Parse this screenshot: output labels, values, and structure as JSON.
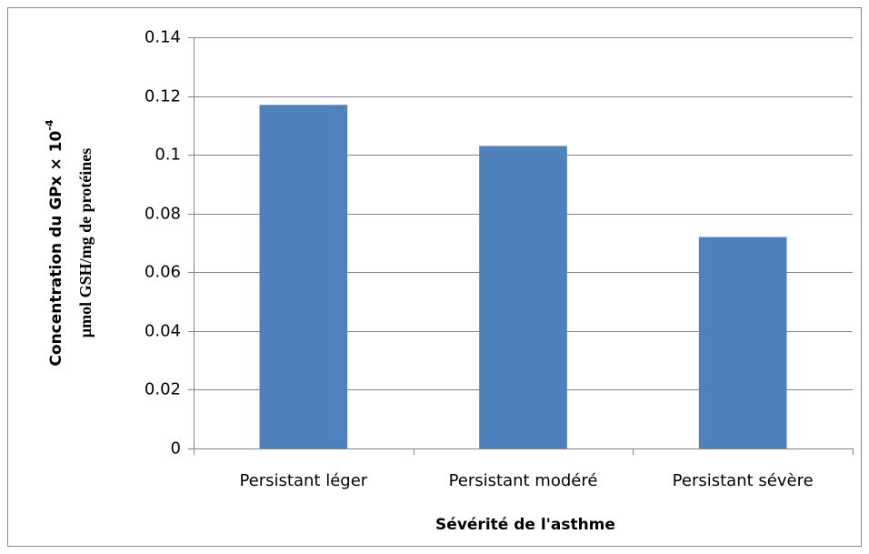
{
  "chart_data": {
    "type": "bar",
    "x_label": "Sévérité de l'asthme",
    "y_label": {
      "line1": "Concentration du GPx × 10",
      "superscript": "-4",
      "line2": "µmol GSH/mg de protéines"
    },
    "categories": [
      "Persistant léger",
      "Persistant modéré",
      "Persistant sévère"
    ],
    "values": [
      0.117,
      0.103,
      0.072
    ],
    "color": "#4f81bd",
    "ylim": [
      0,
      0.14
    ],
    "yticks": [
      0,
      0.02,
      0.04,
      0.06,
      0.08,
      0.1,
      0.12,
      0.14
    ],
    "grid": true
  }
}
